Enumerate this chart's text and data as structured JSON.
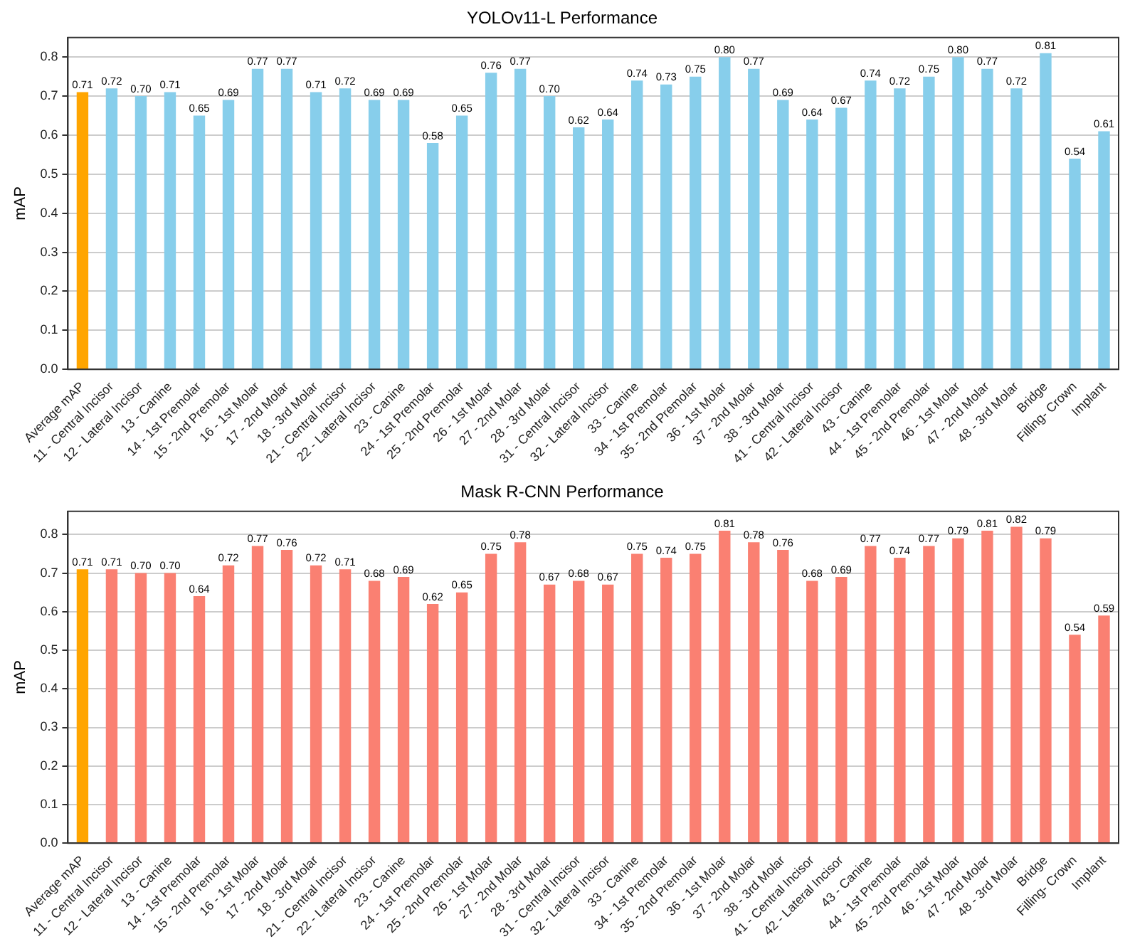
{
  "chart_data": [
    {
      "type": "bar",
      "title": "YOLOv11-L Performance",
      "ylabel": "mAP",
      "categories": [
        "Average mAP",
        "11 - Central Incisor",
        "12 - Lateral Incisor",
        "13 - Canine",
        "14 - 1st Premolar",
        "15 - 2nd Premolar",
        "16 - 1st Molar",
        "17 - 2nd Molar",
        "18 - 3rd Molar",
        "21 - Central Incisor",
        "22 - Lateral Incisor",
        "23 - Canine",
        "24 - 1st Premolar",
        "25 - 2nd Premolar",
        "26 - 1st Molar",
        "27 - 2nd Molar",
        "28 - 3rd Molar",
        "31 - Central Incisor",
        "32 - Lateral Incisor",
        "33 - Canine",
        "34 - 1st Premolar",
        "35 - 2nd Premolar",
        "36 - 1st Molar",
        "37 - 2nd Molar",
        "38 - 3rd Molar",
        "41 - Central Incisor",
        "42 - Lateral Incisor",
        "43 - Canine",
        "44 - 1st Premolar",
        "45 - 2nd Premolar",
        "46 - 1st Molar",
        "47 - 2nd Molar",
        "48 - 3rd Molar",
        "Bridge",
        "Filling- Crown",
        "Implant"
      ],
      "values": [
        0.71,
        0.72,
        0.7,
        0.71,
        0.65,
        0.69,
        0.77,
        0.77,
        0.71,
        0.72,
        0.69,
        0.69,
        0.58,
        0.65,
        0.76,
        0.77,
        0.7,
        0.62,
        0.64,
        0.74,
        0.73,
        0.75,
        0.8,
        0.77,
        0.69,
        0.64,
        0.67,
        0.74,
        0.72,
        0.75,
        0.8,
        0.77,
        0.72,
        0.81,
        0.54,
        0.61
      ],
      "value_labels": [
        "0.71",
        "0.72",
        "0.70",
        "0.71",
        "0.65",
        "0.69",
        "0.77",
        "0.77",
        "0.71",
        "0.72",
        "0.69",
        "0.69",
        "0.58",
        "0.65",
        "0.76",
        "0.77",
        "0.70",
        "0.62",
        "0.64",
        "0.74",
        "0.73",
        "0.75",
        "0.80",
        "0.77",
        "0.69",
        "0.64",
        "0.67",
        "0.74",
        "0.72",
        "0.75",
        "0.80",
        "0.77",
        "0.72",
        "0.81",
        "0.54",
        "0.61"
      ],
      "colors": [
        "#ffa500",
        "#87ceeb",
        "#87ceeb",
        "#87ceeb",
        "#87ceeb",
        "#87ceeb",
        "#87ceeb",
        "#87ceeb",
        "#87ceeb",
        "#87ceeb",
        "#87ceeb",
        "#87ceeb",
        "#87ceeb",
        "#87ceeb",
        "#87ceeb",
        "#87ceeb",
        "#87ceeb",
        "#87ceeb",
        "#87ceeb",
        "#87ceeb",
        "#87ceeb",
        "#87ceeb",
        "#87ceeb",
        "#87ceeb",
        "#87ceeb",
        "#87ceeb",
        "#87ceeb",
        "#87ceeb",
        "#87ceeb",
        "#87ceeb",
        "#87ceeb",
        "#87ceeb",
        "#87ceeb",
        "#87ceeb",
        "#87ceeb",
        "#87ceeb"
      ],
      "ylim": [
        0,
        0.85
      ],
      "yticks": [
        {
          "value": 0,
          "label": "0.0"
        },
        {
          "value": 0.1,
          "label": "0.1"
        },
        {
          "value": 0.2,
          "label": "0.2"
        },
        {
          "value": 0.3,
          "label": "0.3"
        },
        {
          "value": 0.4,
          "label": "0.4"
        },
        {
          "value": 0.5,
          "label": "0.5"
        },
        {
          "value": 0.6,
          "label": "0.6"
        },
        {
          "value": 0.7,
          "label": "0.7"
        },
        {
          "value": 0.8,
          "label": "0.8"
        }
      ],
      "grid": "y",
      "legend": false
    },
    {
      "type": "bar",
      "title": "Mask R-CNN Performance",
      "ylabel": "mAP",
      "categories": [
        "Average mAP",
        "11 - Central Incisor",
        "12 - Lateral Incisor",
        "13 - Canine",
        "14 - 1st Premolar",
        "15 - 2nd Premolar",
        "16 - 1st Molar",
        "17 - 2nd Molar",
        "18 - 3rd Molar",
        "21 - Central Incisor",
        "22 - Lateral Incisor",
        "23 - Canine",
        "24 - 1st Premolar",
        "25 - 2nd Premolar",
        "26 - 1st Molar",
        "27 - 2nd Molar",
        "28 - 3rd Molar",
        "31 - Central Incisor",
        "32 - Lateral Incisor",
        "33 - Canine",
        "34 - 1st Premolar",
        "35 - 2nd Premolar",
        "36 - 1st Molar",
        "37 - 2nd Molar",
        "38 - 3rd Molar",
        "41 - Central Incisor",
        "42 - Lateral Incisor",
        "43 - Canine",
        "44 - 1st Premolar",
        "45 - 2nd Premolar",
        "46 - 1st Molar",
        "47 - 2nd Molar",
        "48 - 3rd Molar",
        "Bridge",
        "Filling- Crown",
        "Implant"
      ],
      "values": [
        0.71,
        0.71,
        0.7,
        0.7,
        0.64,
        0.72,
        0.77,
        0.76,
        0.72,
        0.71,
        0.68,
        0.69,
        0.62,
        0.65,
        0.75,
        0.78,
        0.67,
        0.68,
        0.67,
        0.75,
        0.74,
        0.75,
        0.81,
        0.78,
        0.76,
        0.68,
        0.69,
        0.77,
        0.74,
        0.77,
        0.79,
        0.81,
        0.82,
        0.79,
        0.54,
        0.59
      ],
      "value_labels": [
        "0.71",
        "0.71",
        "0.70",
        "0.70",
        "0.64",
        "0.72",
        "0.77",
        "0.76",
        "0.72",
        "0.71",
        "0.68",
        "0.69",
        "0.62",
        "0.65",
        "0.75",
        "0.78",
        "0.67",
        "0.68",
        "0.67",
        "0.75",
        "0.74",
        "0.75",
        "0.81",
        "0.78",
        "0.76",
        "0.68",
        "0.69",
        "0.77",
        "0.74",
        "0.77",
        "0.79",
        "0.81",
        "0.82",
        "0.79",
        "0.54",
        "0.59"
      ],
      "colors": [
        "#ffa500",
        "#fa8072",
        "#fa8072",
        "#fa8072",
        "#fa8072",
        "#fa8072",
        "#fa8072",
        "#fa8072",
        "#fa8072",
        "#fa8072",
        "#fa8072",
        "#fa8072",
        "#fa8072",
        "#fa8072",
        "#fa8072",
        "#fa8072",
        "#fa8072",
        "#fa8072",
        "#fa8072",
        "#fa8072",
        "#fa8072",
        "#fa8072",
        "#fa8072",
        "#fa8072",
        "#fa8072",
        "#fa8072",
        "#fa8072",
        "#fa8072",
        "#fa8072",
        "#fa8072",
        "#fa8072",
        "#fa8072",
        "#fa8072",
        "#fa8072",
        "#fa8072",
        "#fa8072"
      ],
      "ylim": [
        0,
        0.86
      ],
      "yticks": [
        {
          "value": 0,
          "label": "0.0"
        },
        {
          "value": 0.1,
          "label": "0.1"
        },
        {
          "value": 0.2,
          "label": "0.2"
        },
        {
          "value": 0.3,
          "label": "0.3"
        },
        {
          "value": 0.4,
          "label": "0.4"
        },
        {
          "value": 0.5,
          "label": "0.5"
        },
        {
          "value": 0.6,
          "label": "0.6"
        },
        {
          "value": 0.7,
          "label": "0.7"
        },
        {
          "value": 0.8,
          "label": "0.8"
        }
      ],
      "grid": "y",
      "legend": false
    }
  ]
}
